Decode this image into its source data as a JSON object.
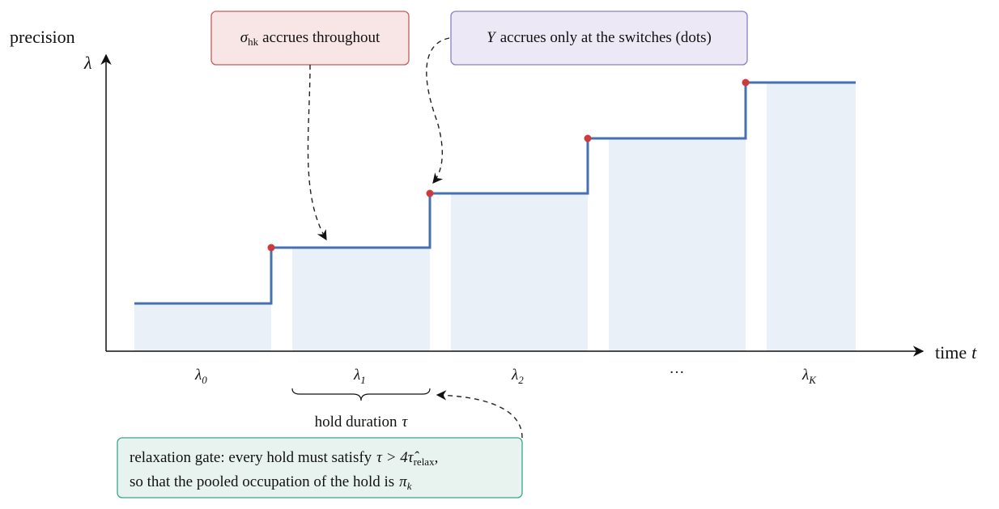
{
  "axes": {
    "y_label": "precision",
    "y_symbol": "λ",
    "x_label": "time",
    "x_symbol": "t"
  },
  "holds": [
    {
      "symbol": "λ",
      "sub": "0"
    },
    {
      "symbol": "λ",
      "sub": "1"
    },
    {
      "symbol": "λ",
      "sub": "2"
    },
    {
      "text": "···"
    },
    {
      "symbol": "λ",
      "sub": "K"
    }
  ],
  "hold_duration": {
    "text": "hold duration",
    "symbol": "τ"
  },
  "callouts": {
    "sigma": {
      "symbol": "σ",
      "sub": "hk",
      "text": "accrues throughout"
    },
    "y": {
      "symbol": "Y",
      "text": "accrues only at the switches (dots)"
    },
    "gate": {
      "line1": {
        "text": "relaxation gate: every hold must satisfy",
        "math": "τ > 4τ̂",
        "sub": "relax",
        "end": ","
      },
      "line2": {
        "text": "so that the pooled occupation of the hold is",
        "symbol": "π",
        "sub": "k"
      }
    }
  }
}
